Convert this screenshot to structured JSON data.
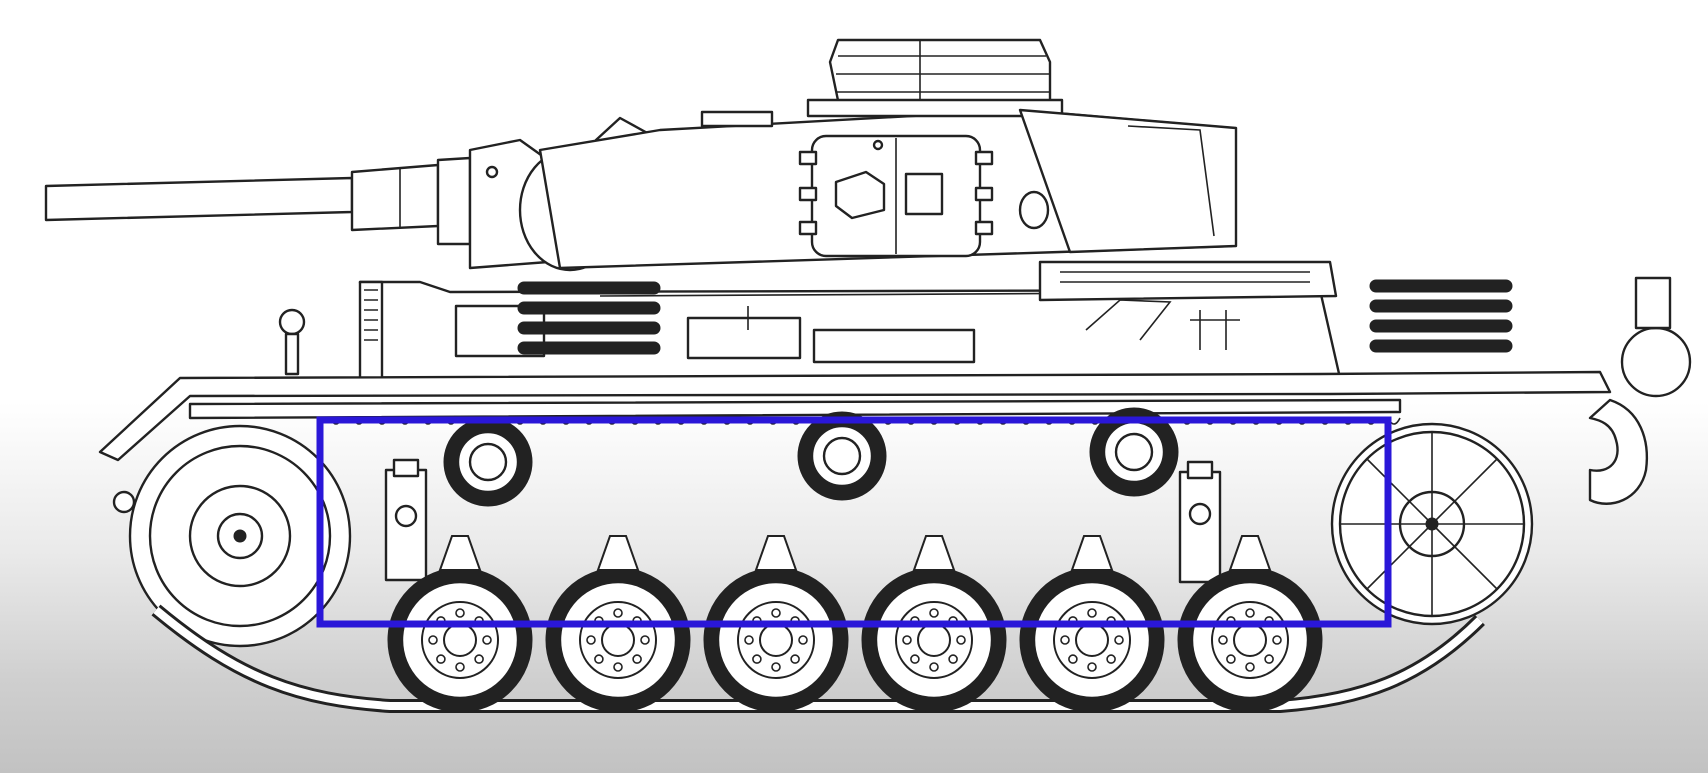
{
  "colors": {
    "ink": "#222222",
    "paper": "#ffffff",
    "highlight": "#2a17d8",
    "background_bottom": "#c2c2c2"
  },
  "illustration": {
    "type": "tank-side-view-line-drawing",
    "road_wheel_count": 6,
    "return_roller_count": 3,
    "highlight_region": "suspension"
  }
}
